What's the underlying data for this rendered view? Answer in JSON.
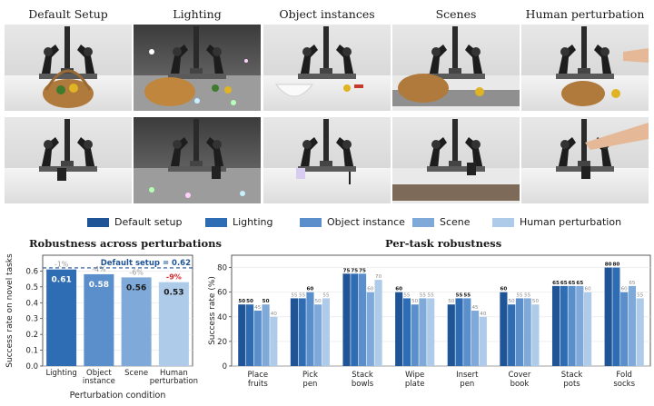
{
  "columns": [
    "Default Setup",
    "Lighting",
    "Object instances",
    "Scenes",
    "Human perturbation"
  ],
  "colors": {
    "default_setup": "#1f5597",
    "lighting": "#2e6db4",
    "object_instance": "#5a8fcb",
    "scene": "#7ea9d8",
    "human_perturbation": "#aecbea",
    "baseline_line": "#1f5597",
    "drop_small": "#9a9a9a",
    "drop_large": "#d62728"
  },
  "legend": [
    "Default setup",
    "Lighting",
    "Object instance",
    "Scene",
    "Human perturbation"
  ],
  "chart_data": [
    {
      "type": "bar",
      "title": "Robustness across perturbations",
      "xlabel": "Perturbation condition",
      "ylabel": "Success rate on novel tasks",
      "ylim": [
        0,
        0.7
      ],
      "yticks": [
        "0.0",
        "0.1",
        "0.2",
        "0.3",
        "0.4",
        "0.5",
        "0.6"
      ],
      "categories": [
        "Lighting",
        "Object\ninstance",
        "Scene",
        "Human\nperturbation"
      ],
      "values": [
        0.61,
        0.58,
        0.56,
        0.53
      ],
      "value_labels": [
        "0.61",
        "0.58",
        "0.56",
        "0.53"
      ],
      "drops": [
        "-1%",
        "-4%",
        "-6%",
        "-9%"
      ],
      "baseline": 0.62,
      "baseline_label": "Default setup = 0.62"
    },
    {
      "type": "bar",
      "title": "Per-task robustness",
      "ylabel": "Success rate (%)",
      "ylim": [
        0,
        90
      ],
      "yticks": [
        "0",
        "20",
        "40",
        "60",
        "80"
      ],
      "categories": [
        "Place\nfruits",
        "Pick\npen",
        "Stack\nbowls",
        "Wipe\nplate",
        "Insert\npen",
        "Cover\nbook",
        "Stack\npots",
        "Fold\nsocks"
      ],
      "series": [
        {
          "name": "Default setup",
          "values": [
            50,
            55,
            75,
            60,
            50,
            60,
            65,
            80
          ]
        },
        {
          "name": "Lighting",
          "values": [
            50,
            55,
            75,
            55,
            55,
            50,
            65,
            80
          ]
        },
        {
          "name": "Object instance",
          "values": [
            45,
            60,
            75,
            50,
            55,
            55,
            65,
            60
          ]
        },
        {
          "name": "Scene",
          "values": [
            50,
            50,
            60,
            55,
            45,
            55,
            65,
            65
          ]
        },
        {
          "name": "Human perturbation",
          "values": [
            40,
            55,
            70,
            55,
            40,
            50,
            60,
            55
          ]
        }
      ],
      "bold_labels": [
        [
          true,
          true,
          false,
          true,
          false
        ],
        [
          false,
          false,
          true,
          false,
          false
        ],
        [
          true,
          true,
          true,
          false,
          false
        ],
        [
          true,
          false,
          false,
          false,
          false
        ],
        [
          false,
          true,
          true,
          false,
          false
        ],
        [
          true,
          false,
          false,
          false,
          false
        ],
        [
          true,
          true,
          true,
          true,
          false
        ],
        [
          true,
          true,
          false,
          false,
          false
        ]
      ]
    }
  ]
}
